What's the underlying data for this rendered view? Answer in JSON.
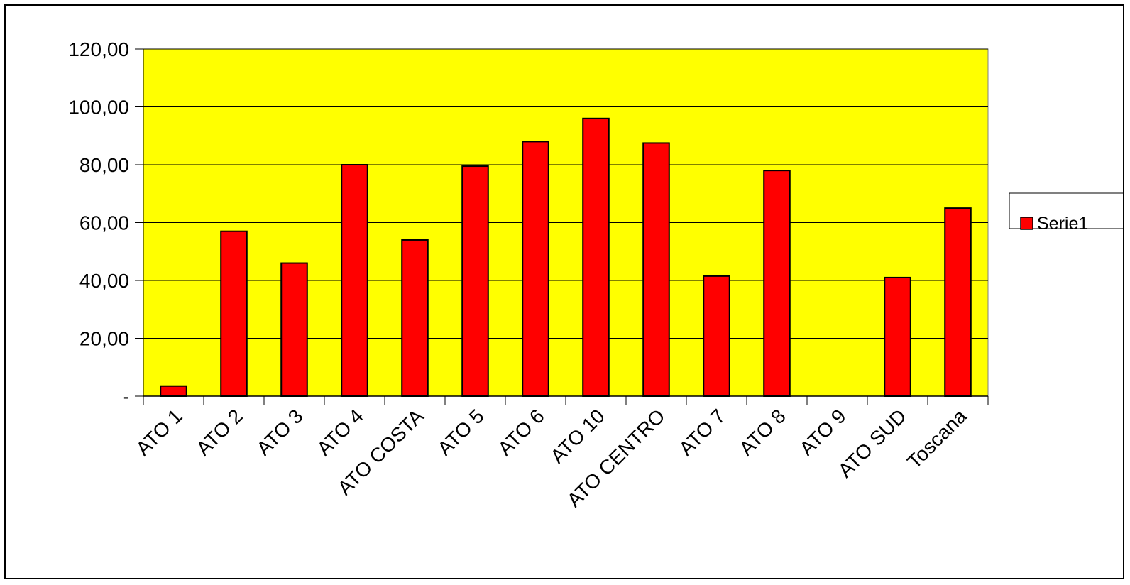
{
  "colors": {
    "plot_background": "#ffff00",
    "bar_fill": "#ff0000",
    "bar_stroke": "#000000",
    "gridline": "#000000"
  },
  "chart_data": {
    "type": "bar",
    "categories": [
      "ATO 1",
      "ATO 2",
      "ATO 3",
      "ATO 4",
      "ATO COSTA",
      "ATO 5",
      "ATO 6",
      "ATO 10",
      "ATO CENTRO",
      "ATO 7",
      "ATO 8",
      "ATO 9",
      "ATO SUD",
      "Toscana"
    ],
    "series": [
      {
        "name": "Serie1",
        "values": [
          3.5,
          57,
          46,
          80,
          54,
          79.5,
          88,
          96,
          87.5,
          41.5,
          78,
          0,
          41,
          65
        ]
      }
    ],
    "ylim": [
      0,
      120
    ],
    "yticks": [
      0,
      20,
      40,
      60,
      80,
      100,
      120
    ],
    "ytick_labels": [
      "-",
      "20,00",
      "40,00",
      "60,00",
      "80,00",
      "100,00",
      "120,00"
    ],
    "grid": true,
    "legend_position": "right",
    "title": "",
    "xlabel": "",
    "ylabel": ""
  }
}
